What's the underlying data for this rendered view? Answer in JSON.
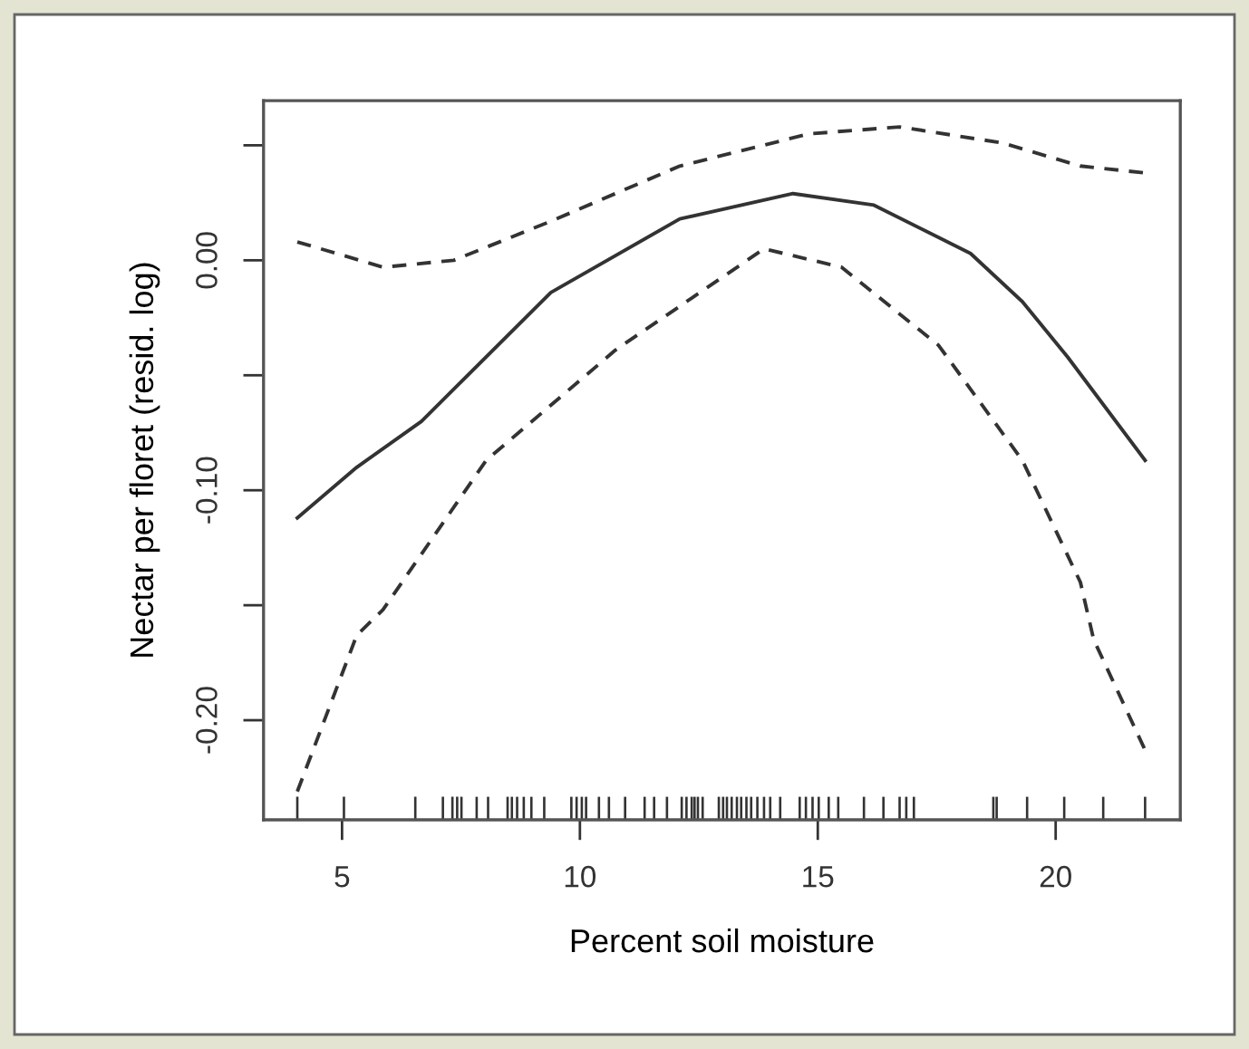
{
  "chart_data": {
    "type": "line",
    "xlabel": "Percent soil moisture",
    "ylabel": "Nectar per floret (resid. log)",
    "xlim": [
      3.35,
      22.62
    ],
    "xticks": [
      5,
      10,
      15,
      20
    ],
    "ylim": [
      -0.2433,
      0.0694
    ],
    "yticks": [
      {
        "value": 0.05,
        "label": null
      },
      {
        "value": 0.0,
        "label": "0.00"
      },
      {
        "value": -0.05,
        "label": null
      },
      {
        "value": -0.1,
        "label": "-0.10"
      },
      {
        "value": -0.15,
        "label": null
      },
      {
        "value": -0.2,
        "label": "-0.20"
      }
    ],
    "grid": false,
    "legend": false,
    "series": [
      {
        "color": "#333333",
        "line_style": "solid",
        "x": [
          4.06,
          5.31,
          6.67,
          9.39,
          12.1,
          14.48,
          16.18,
          18.21,
          19.3,
          20.25,
          21.88
        ],
        "values": [
          -0.112,
          -0.09,
          -0.07,
          -0.014,
          0.018,
          0.029,
          0.024,
          0.003,
          -0.018,
          -0.042,
          -0.087
        ]
      },
      {
        "color": "#333333",
        "line_style": "dashed",
        "x": [
          4.06,
          5.86,
          7.35,
          9.39,
          12.1,
          14.82,
          16.72,
          18.89,
          20.52,
          21.88
        ],
        "values": [
          0.008,
          -0.003,
          0.0,
          0.017,
          0.041,
          0.055,
          0.058,
          0.051,
          0.041,
          0.038
        ]
      },
      {
        "color": "#333333",
        "line_style": "dashed",
        "x": [
          4.06,
          5.31,
          5.86,
          8.03,
          10.75,
          13.87,
          15.5,
          17.54,
          19.3,
          20.52,
          20.8,
          21.88
        ],
        "values": [
          -0.231,
          -0.163,
          -0.152,
          -0.087,
          -0.039,
          0.005,
          -0.003,
          -0.037,
          -0.087,
          -0.14,
          -0.165,
          -0.213
        ]
      },
      {
        "type": "bar",
        "color": "#333333",
        "x": [
          4.06,
          5.04,
          6.54,
          7.12,
          7.32,
          7.42,
          7.51,
          7.83,
          8.07,
          8.48,
          8.57,
          8.68,
          8.82,
          8.98,
          9.25,
          9.82,
          9.93,
          10.04,
          10.13,
          10.4,
          10.61,
          10.95,
          11.36,
          11.56,
          11.83,
          12.14,
          12.24,
          12.35,
          12.41,
          12.48,
          12.58,
          12.92,
          13.01,
          13.09,
          13.19,
          13.3,
          13.39,
          13.5,
          13.6,
          13.73,
          13.87,
          14.0,
          14.21,
          14.62,
          14.75,
          14.89,
          15.02,
          15.23,
          15.43,
          15.97,
          16.38,
          16.72,
          16.86,
          17.02,
          18.69,
          18.76,
          19.4,
          20.18,
          21.0,
          21.88
        ],
        "base": [
          -0.2433,
          -0.2433,
          -0.2433,
          -0.2433,
          -0.2433,
          -0.2433,
          -0.2433,
          -0.2433,
          -0.2433,
          -0.2433,
          -0.2433,
          -0.2433,
          -0.2433,
          -0.2433,
          -0.2433,
          -0.2433,
          -0.2433,
          -0.2433,
          -0.2433,
          -0.2433,
          -0.2433,
          -0.2433,
          -0.2433,
          -0.2433,
          -0.2433,
          -0.2433,
          -0.2433,
          -0.2433,
          -0.2433,
          -0.2433,
          -0.2433,
          -0.2433,
          -0.2433,
          -0.2433,
          -0.2433,
          -0.2433,
          -0.2433,
          -0.2433,
          -0.2433,
          -0.2433,
          -0.2433,
          -0.2433,
          -0.2433,
          -0.2433,
          -0.2433,
          -0.2433,
          -0.2433,
          -0.2433,
          -0.2433,
          -0.2433,
          -0.2433,
          -0.2433,
          -0.2433,
          -0.2433,
          -0.2433,
          -0.2433,
          -0.2433,
          -0.2433,
          -0.2433,
          -0.2433
        ],
        "values": [
          0.01,
          0.01,
          0.01,
          0.01,
          0.01,
          0.01,
          0.01,
          0.01,
          0.01,
          0.01,
          0.01,
          0.01,
          0.01,
          0.01,
          0.01,
          0.01,
          0.01,
          0.01,
          0.01,
          0.01,
          0.01,
          0.01,
          0.01,
          0.01,
          0.01,
          0.01,
          0.01,
          0.01,
          0.01,
          0.01,
          0.01,
          0.01,
          0.01,
          0.01,
          0.01,
          0.01,
          0.01,
          0.01,
          0.01,
          0.01,
          0.01,
          0.01,
          0.01,
          0.01,
          0.01,
          0.01,
          0.01,
          0.01,
          0.01,
          0.01,
          0.01,
          0.01,
          0.01,
          0.01,
          0.01,
          0.01,
          0.01,
          0.01,
          0.01,
          0.01
        ]
      }
    ]
  }
}
